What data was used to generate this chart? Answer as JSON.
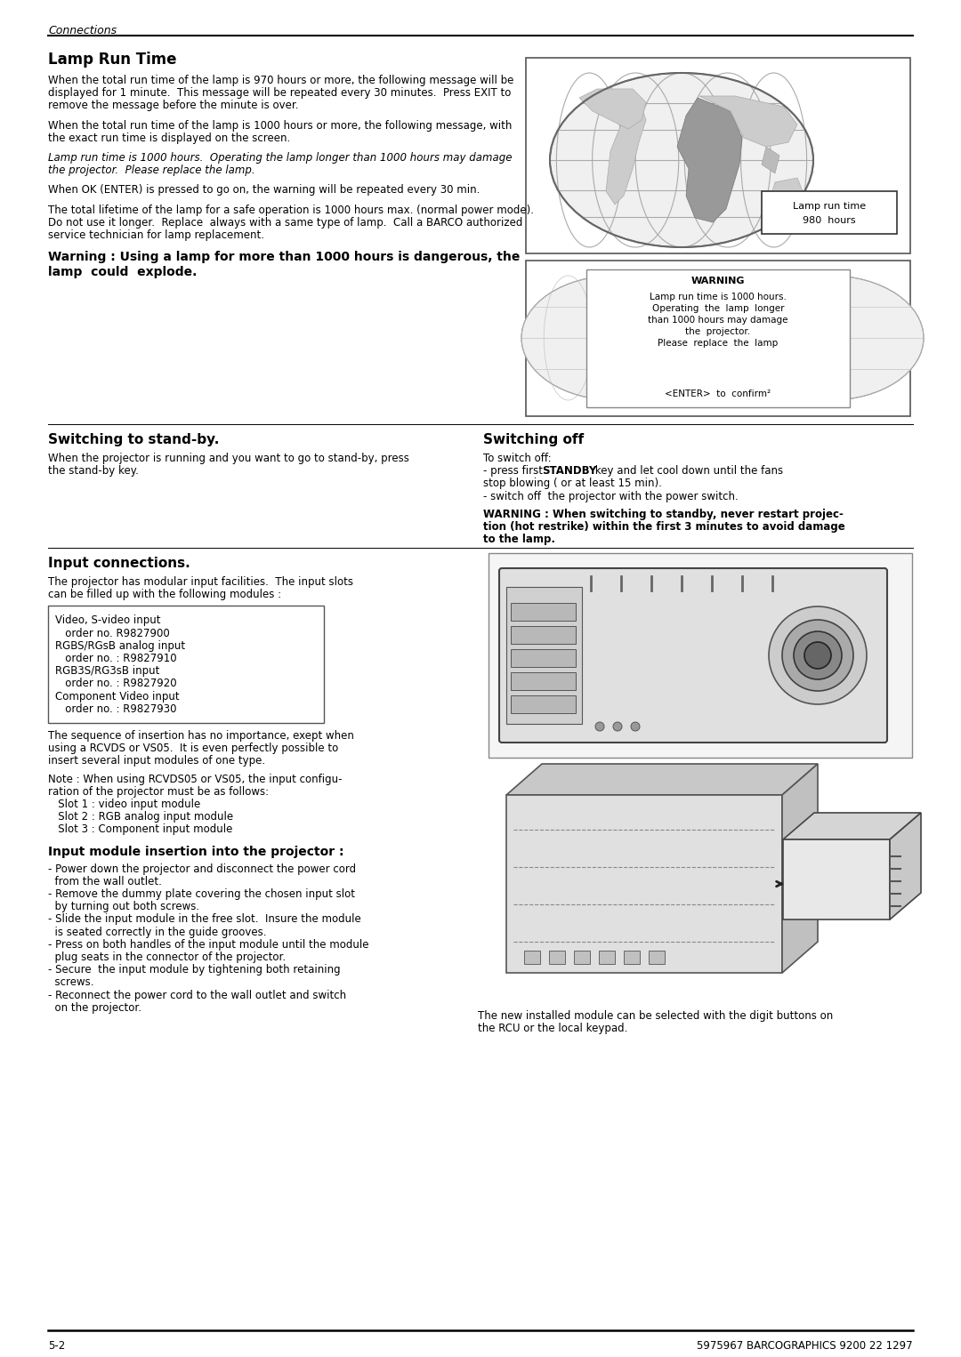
{
  "page_bg": "#ffffff",
  "text_color": "#000000",
  "header_italic": "Connections",
  "footer_left": "5-2",
  "footer_right": "5975967 BARCOGRAPHICS 9200 22 1297",
  "title1": "Lamp Run Time",
  "body1_lines": [
    "When the total run time of the lamp is 970 hours or more, the following message will be",
    "displayed for 1 minute.  This message will be repeated every 30 minutes.  Press EXIT to",
    "remove the message before the minute is over."
  ],
  "body2_lines": [
    "When the total run time of the lamp is 1000 hours or more, the following message, with",
    "the exact run time is displayed on the screen."
  ],
  "body3_italic_lines": [
    "Lamp run time is 1000 hours.  Operating the lamp longer than 1000 hours may damage",
    "the projector.  Please replace the lamp."
  ],
  "body4_lines": [
    "When OK (ENTER) is pressed to go on, the warning will be repeated every 30 min."
  ],
  "body5_lines": [
    "The total lifetime of the lamp for a safe operation is 1000 hours max. (normal power mode).",
    "Do not use it longer.  Replace  always with a same type of lamp.  Call a BARCO authorized",
    "service technician for lamp replacement."
  ],
  "warning_bold": "Warning : Using a lamp for more than 1000 hours is dangerous, the",
  "warning_bold2": "lamp  could  explode.",
  "title2": "Switching to stand-by.",
  "title3": "Switching off",
  "stanby_lines": [
    "When the projector is running and you want to go to stand-by, press",
    "the stand-by key."
  ],
  "switchoff_line0": "To switch off:",
  "switchoff_line1a": "- press first ",
  "switchoff_line1b": "STANDBY",
  "switchoff_line1c": " key and let cool down until the fans",
  "switchoff_line2": "stop blowing ( or at least 15 min).",
  "switchoff_line3": "- switch off  the projector with the power switch.",
  "switchoff_bold_lines": [
    "WARNING : When switching to standby, never restart projec-",
    "tion (hot restrike) within the first 3 minutes to avoid damage",
    "to the lamp."
  ],
  "title4": "Input connections.",
  "input_intro_lines": [
    "The projector has modular input facilities.  The input slots",
    "can be filled up with the following modules :"
  ],
  "input_box_lines": [
    "Video, S-video input",
    "   order no. R9827900",
    "RGBS/RGsB analog input",
    "   order no. : R9827910",
    "RGB3S/RG3sB input",
    "   order no. : R9827920",
    "Component Video input",
    "   order no. : R9827930"
  ],
  "input_note_lines": [
    "The sequence of insertion has no importance, exept when",
    "using a RCVDS or VS05.  It is even perfectly possible to",
    "insert several input modules of one type."
  ],
  "input_note2_lines": [
    "Note : When using RCVDS05 or VS05, the input configu-",
    "ration of the projector must be as follows:",
    "   Slot 1 : video input module",
    "   Slot 2 : RGB analog input module",
    "   Slot 3 : Component input module"
  ],
  "title5": "Input module insertion into the projector :",
  "insertion_lines": [
    "- Power down the projector and disconnect the power cord",
    "  from the wall outlet.",
    "- Remove the dummy plate covering the chosen input slot",
    "  by turning out both screws.",
    "- Slide the input module in the free slot.  Insure the module",
    "  is seated correctly in the guide grooves.",
    "- Press on both handles of the input module until the module",
    "  plug seats in the connector of the projector.",
    "- Secure  the input module by tightening both retaining",
    "  screws.",
    "- Reconnect the power cord to the wall outlet and switch",
    "  on the projector."
  ],
  "caption_bottom": [
    "The new installed module can be selected with the digit buttons on",
    "the RCU or the local keypad."
  ],
  "globe_warn_lines": [
    "Lamp run time is 1000 hours.",
    "Operating  the  lamp  longer",
    "than 1000 hours may damage",
    "the  projector.",
    "Please  replace  the  lamp"
  ],
  "globe_warn_enter": "<ENTER>  to  confirm²"
}
